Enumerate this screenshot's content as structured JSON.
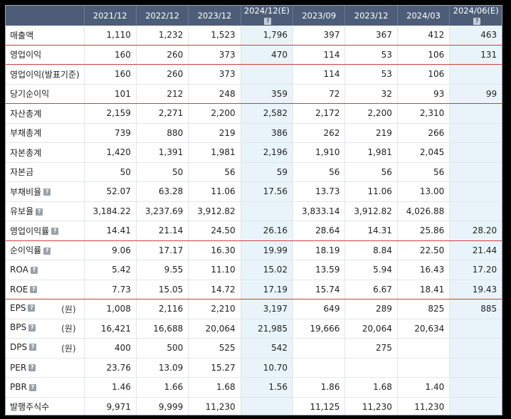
{
  "headers": [
    "",
    "2021/12",
    "2022/12",
    "2023/12",
    "2024/12(E)",
    "2023/09",
    "2023/12",
    "2024/03",
    "2024/06(E)"
  ],
  "rows": [
    {
      "label": "매출액",
      "help": false,
      "unit": "",
      "values": [
        "1,110",
        "1,232",
        "1,523",
        "1,796",
        "397",
        "367",
        "412",
        "463"
      ],
      "red": true
    },
    {
      "label": "영업이익",
      "help": false,
      "unit": "",
      "values": [
        "160",
        "260",
        "373",
        "470",
        "114",
        "53",
        "106",
        "131"
      ],
      "red": true
    },
    {
      "label": "영업이익(발표기준)",
      "help": false,
      "unit": "",
      "values": [
        "160",
        "260",
        "373",
        "",
        "114",
        "53",
        "106",
        ""
      ],
      "red": false
    },
    {
      "label": "당기순이익",
      "help": false,
      "unit": "",
      "values": [
        "101",
        "212",
        "248",
        "359",
        "72",
        "32",
        "93",
        "99"
      ],
      "red": true
    },
    {
      "label": "자산총계",
      "help": false,
      "unit": "",
      "values": [
        "2,159",
        "2,271",
        "2,200",
        "2,582",
        "2,172",
        "2,200",
        "2,310",
        ""
      ],
      "red": false
    },
    {
      "label": "부채총계",
      "help": false,
      "unit": "",
      "values": [
        "739",
        "880",
        "219",
        "386",
        "262",
        "219",
        "266",
        ""
      ],
      "red": false
    },
    {
      "label": "자본총계",
      "help": false,
      "unit": "",
      "values": [
        "1,420",
        "1,391",
        "1,981",
        "2,196",
        "1,910",
        "1,981",
        "2,045",
        ""
      ],
      "red": false
    },
    {
      "label": "자본금",
      "help": false,
      "unit": "",
      "values": [
        "50",
        "50",
        "56",
        "59",
        "56",
        "56",
        "56",
        ""
      ],
      "red": false
    },
    {
      "label": "부채비율",
      "help": true,
      "unit": "",
      "values": [
        "52.07",
        "63.28",
        "11.06",
        "17.56",
        "13.73",
        "11.06",
        "13.00",
        ""
      ],
      "red": false
    },
    {
      "label": "유보율",
      "help": true,
      "unit": "",
      "values": [
        "3,184.22",
        "3,237.69",
        "3,912.82",
        "",
        "3,833.14",
        "3,912.82",
        "4,026.88",
        ""
      ],
      "red": false
    },
    {
      "label": "영업이익률",
      "help": true,
      "unit": "",
      "values": [
        "14.41",
        "21.14",
        "24.50",
        "26.16",
        "28.64",
        "14.31",
        "25.86",
        "28.20"
      ],
      "red": true
    },
    {
      "label": "순이익률",
      "help": true,
      "unit": "",
      "values": [
        "9.06",
        "17.17",
        "16.30",
        "19.99",
        "18.19",
        "8.84",
        "22.50",
        "21.44"
      ],
      "red": false
    },
    {
      "label": "ROA",
      "help": true,
      "unit": "",
      "values": [
        "5.42",
        "9.55",
        "11.10",
        "15.02",
        "13.59",
        "5.94",
        "16.43",
        "17.20"
      ],
      "red": false
    },
    {
      "label": "ROE",
      "help": true,
      "unit": "",
      "values": [
        "7.73",
        "15.05",
        "14.72",
        "17.19",
        "15.74",
        "6.67",
        "18.41",
        "19.43"
      ],
      "red": true
    },
    {
      "label": "EPS",
      "help": true,
      "unit": "(원)",
      "values": [
        "1,008",
        "2,116",
        "2,210",
        "3,197",
        "649",
        "289",
        "825",
        "885"
      ],
      "red": false
    },
    {
      "label": "BPS",
      "help": true,
      "unit": "(원)",
      "values": [
        "16,421",
        "16,688",
        "20,064",
        "21,985",
        "19,666",
        "20,064",
        "20,634",
        ""
      ],
      "red": false
    },
    {
      "label": "DPS",
      "help": true,
      "unit": "(원)",
      "values": [
        "400",
        "500",
        "525",
        "542",
        "",
        "275",
        "",
        ""
      ],
      "red": false
    },
    {
      "label": "PER",
      "help": true,
      "unit": "",
      "values": [
        "23.76",
        "13.09",
        "15.27",
        "10.70",
        "",
        "",
        "",
        ""
      ],
      "red": false
    },
    {
      "label": "PBR",
      "help": true,
      "unit": "",
      "values": [
        "1.46",
        "1.66",
        "1.68",
        "1.56",
        "1.86",
        "1.68",
        "1.40",
        ""
      ],
      "red": false
    },
    {
      "label": "발행주식수",
      "help": false,
      "unit": "",
      "values": [
        "9,971",
        "9,999",
        "11,230",
        "",
        "11,125",
        "11,230",
        "11,230",
        ""
      ],
      "red": false
    }
  ],
  "help_icon": "question-icon"
}
